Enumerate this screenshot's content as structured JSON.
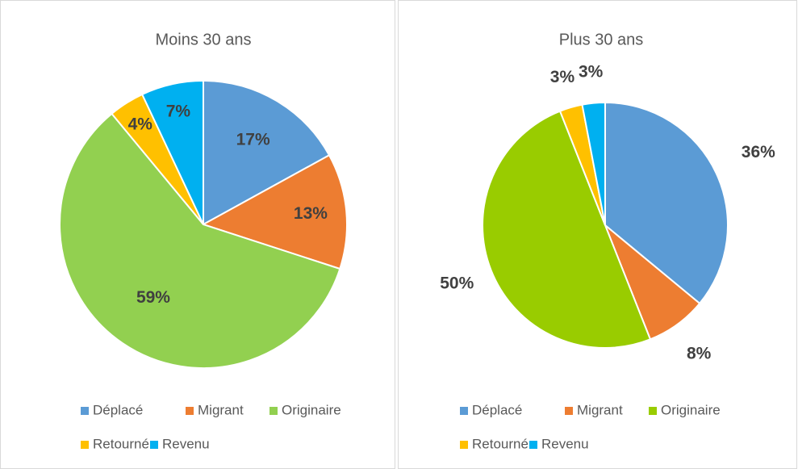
{
  "chart_data": [
    {
      "type": "pie",
      "title": "Moins 30 ans",
      "categories": [
        "Déplacé",
        "Migrant",
        "Originaire",
        "Retourné",
        "Revenu"
      ],
      "values": [
        17,
        13,
        59,
        4,
        7
      ],
      "value_labels": [
        "17%",
        "13%",
        "59%",
        "4%",
        "7%"
      ],
      "colors": [
        "#5b9bd5",
        "#ed7d31",
        "#92d050",
        "#ffc000",
        "#00b0f0"
      ],
      "legend": "bottom"
    },
    {
      "type": "pie",
      "title": "Plus 30 ans",
      "categories": [
        "Déplacé",
        "Migrant",
        "Originaire",
        "Retourné",
        "Revenu"
      ],
      "values": [
        36,
        8,
        50,
        3,
        3
      ],
      "value_labels": [
        "36%",
        "8%",
        "50%",
        "3%",
        "3%"
      ],
      "colors": [
        "#5b9bd5",
        "#ed7d31",
        "#99cc00",
        "#ffc000",
        "#00b0f0"
      ],
      "legend": "bottom"
    }
  ]
}
